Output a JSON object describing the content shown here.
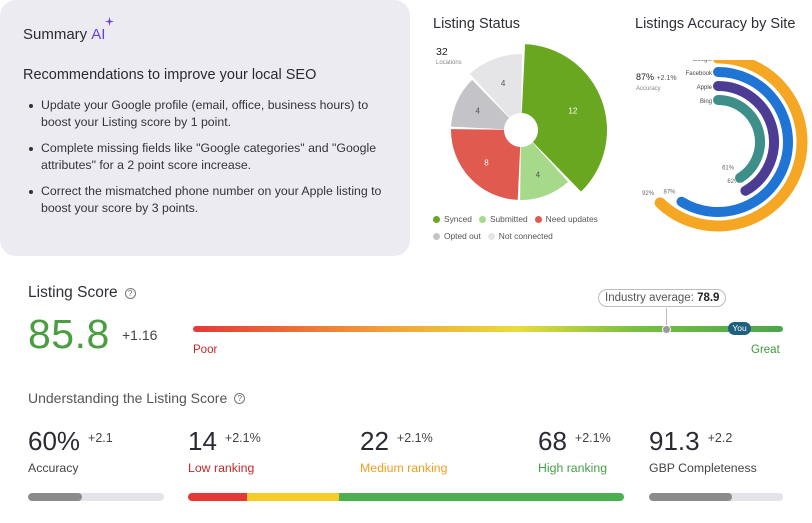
{
  "summary": {
    "title": "Summary",
    "ai_label": "AI",
    "recommendations_heading": "Recommendations to improve your local SEO",
    "recommendations": [
      "Update your Google profile (email, office, business hours) to boost your Listing score by 1 point.",
      "Complete missing fields like \"Google categories\" and \"Google attributes\" for a 2 point score increase.",
      "Correct the mismatched phone number on your Apple listing to boost your score by 3 points."
    ]
  },
  "listing_status": {
    "title": "Listing Status",
    "total": "32",
    "total_label": "Locations",
    "legend": [
      {
        "label": "Synced",
        "color": "#6aa720"
      },
      {
        "label": "Submitted",
        "color": "#a7d98a"
      },
      {
        "label": "Need updates",
        "color": "#e05a4f"
      },
      {
        "label": "Opted out",
        "color": "#c4c4c8"
      },
      {
        "label": "Not connected",
        "color": "#e5e5e7"
      }
    ]
  },
  "accuracy": {
    "title": "Listings Accuracy by Site",
    "overall": "87%",
    "overall_delta": "+2.1%",
    "overall_label": "Accuracy",
    "sites": [
      {
        "name": "Google",
        "value": "92%",
        "color": "#f5a623"
      },
      {
        "name": "Facebook",
        "value": "87%",
        "color": "#1f74d4"
      },
      {
        "name": "Apple",
        "value": "62%",
        "color": "#4c3c93"
      },
      {
        "name": "Bing",
        "value": "61%",
        "color": "#3e8f8a"
      }
    ]
  },
  "listing_score": {
    "title": "Listing Score",
    "value": "85.8",
    "delta": "+1.16",
    "industry_label": "Industry average:",
    "industry_value": "78.9",
    "you_label": "You",
    "poor_label": "Poor",
    "great_label": "Great"
  },
  "understanding": {
    "title": "Understanding the Listing Score",
    "metrics": [
      {
        "value": "60%",
        "delta": "+2.1",
        "label": "Accuracy",
        "label_color": "#444444"
      },
      {
        "value": "14",
        "delta": "+2.1%",
        "label": "Low ranking",
        "label_color": "#c62828"
      },
      {
        "value": "22",
        "delta": "+2.1%",
        "label": "Medium ranking",
        "label_color": "#f0a020"
      },
      {
        "value": "68",
        "delta": "+2.1%",
        "label": "High ranking",
        "label_color": "#43a047"
      },
      {
        "value": "91.3",
        "delta": "+2.2",
        "label": "GBP Completeness",
        "label_color": "#444444"
      }
    ],
    "accuracy_fill": 0.4,
    "gbp_fill": 0.62,
    "ranking_split": [
      14,
      22,
      68
    ],
    "ranking_colors": [
      "#e53935",
      "#f5cc2a",
      "#4caf50"
    ]
  },
  "chart_data": [
    {
      "type": "pie",
      "title": "Listing Status",
      "categories": [
        "Synced",
        "Submitted",
        "Need updates",
        "Opted out",
        "Not connected"
      ],
      "values": [
        12,
        4,
        8,
        4,
        4
      ]
    },
    {
      "type": "bar",
      "title": "Listings Accuracy by Site",
      "categories": [
        "Google",
        "Facebook",
        "Apple",
        "Bing"
      ],
      "values": [
        92,
        87,
        62,
        61
      ],
      "ylim": [
        0,
        100
      ]
    }
  ]
}
